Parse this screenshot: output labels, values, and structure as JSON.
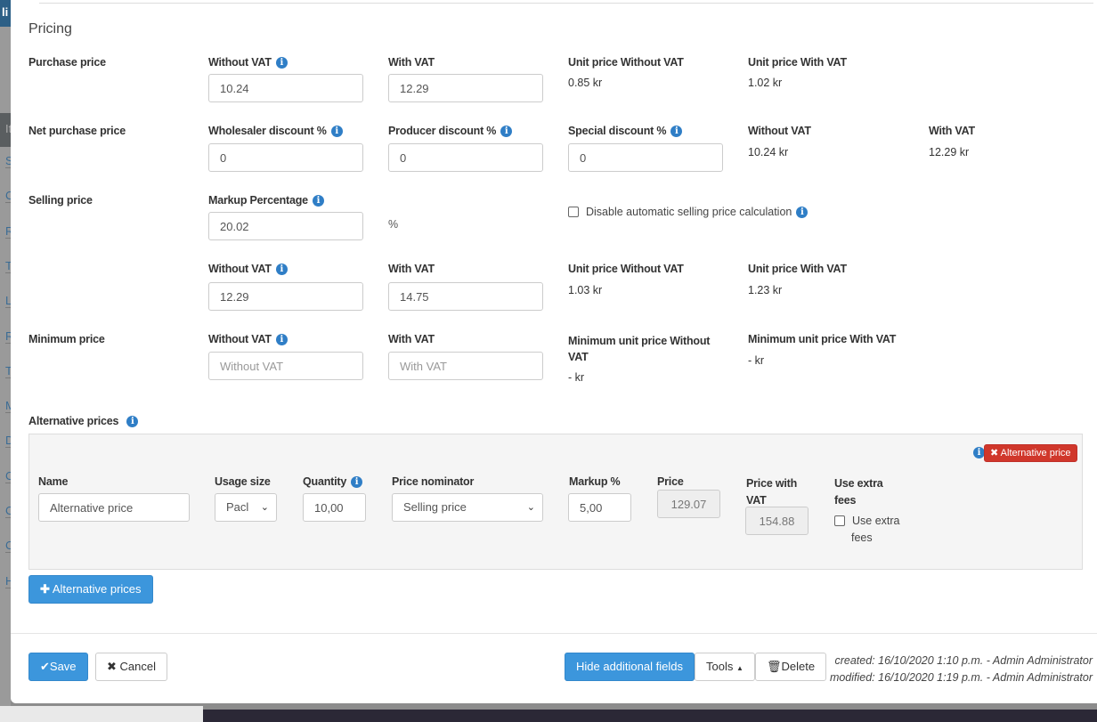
{
  "sidebar": {
    "top_label": "li",
    "letters": [
      "It",
      "S",
      "C",
      "R",
      "T",
      "L",
      "R",
      "T",
      "M",
      "D",
      "C",
      "C",
      "C",
      "H"
    ]
  },
  "section_title": "Pricing",
  "purchase": {
    "label": "Purchase price",
    "without_vat_label": "Without VAT",
    "without_vat": "10.24",
    "with_vat_label": "With VAT",
    "with_vat": "12.29",
    "unit_without_label": "Unit price Without VAT",
    "unit_without": "0.85 kr",
    "unit_with_label": "Unit price With VAT",
    "unit_with": "1.02 kr"
  },
  "net": {
    "label": "Net purchase price",
    "wholesaler_label": "Wholesaler discount %",
    "wholesaler": "0",
    "producer_label": "Producer discount %",
    "producer": "0",
    "special_label": "Special discount %",
    "special": "0",
    "without_vat_label": "Without VAT",
    "without_vat": "10.24 kr",
    "with_vat_label": "With VAT",
    "with_vat": "12.29 kr"
  },
  "selling": {
    "label": "Selling price",
    "markup_label": "Markup Percentage",
    "markup": "20.02",
    "percent_sign": "%",
    "disable_auto_label": "Disable automatic selling price calculation",
    "disable_auto_checked": false,
    "without_vat_label": "Without VAT",
    "without_vat": "12.29",
    "with_vat_label": "With VAT",
    "with_vat": "14.75",
    "unit_without_label": "Unit price Without VAT",
    "unit_without": "1.03 kr",
    "unit_with_label": "Unit price With VAT",
    "unit_with": "1.23 kr"
  },
  "minimum": {
    "label": "Minimum price",
    "without_vat_label": "Without VAT",
    "without_vat_placeholder": "Without VAT",
    "with_vat_label": "With VAT",
    "with_vat_placeholder": "With VAT",
    "unit_without_label": "Minimum unit price Without VAT",
    "unit_without": "- kr",
    "unit_with_label": "Minimum unit price With VAT",
    "unit_with": "- kr"
  },
  "alternative": {
    "label": "Alternative prices",
    "remove_label": "Alternative price",
    "name_label": "Name",
    "name": "Alternative price",
    "usage_label": "Usage size",
    "usage": "Pacl",
    "quantity_label": "Quantity",
    "quantity": "10,00",
    "nominator_label": "Price nominator",
    "nominator": "Selling price",
    "markup_label": "Markup %",
    "markup": "5,00",
    "price_label": "Price",
    "price": "129.07",
    "price_vat_label": "Price with VAT",
    "price_vat": "154.88",
    "extra_label": "Use extra fees",
    "extra_check_label": "Use extra fees",
    "extra_checked": false,
    "add_label": "Alternative prices"
  },
  "footer": {
    "save": "Save",
    "cancel": "Cancel",
    "hide_fields": "Hide additional fields",
    "tools": "Tools",
    "delete": "Delete",
    "created": "created: 16/10/2020 1:10 p.m. - Admin Administrator",
    "modified": "modified: 16/10/2020 1:19 p.m. - Admin Administrator"
  },
  "colors": {
    "primary": "#3c96dc",
    "danger": "#d0372b",
    "info": "#2f7ec6"
  }
}
